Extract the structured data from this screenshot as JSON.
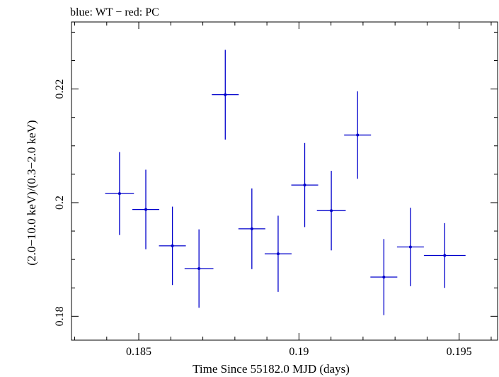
{
  "chart_data": {
    "type": "scatter",
    "title": "blue: WT − red: PC",
    "xlabel": "Time Since 55182.0 MJD (days)",
    "ylabel": "(2.0−10.0 keV)/(0.3−2.0 keV)",
    "xlim": [
      0.1829,
      0.1962
    ],
    "ylim": [
      0.1758,
      0.2318
    ],
    "x_ticks": [
      {
        "value": 0.185,
        "label": "0.185"
      },
      {
        "value": 0.19,
        "label": "0.19"
      },
      {
        "value": 0.195,
        "label": "0.195"
      }
    ],
    "y_ticks": [
      {
        "value": 0.18,
        "label": "0.18"
      },
      {
        "value": 0.2,
        "label": "0.2"
      },
      {
        "value": 0.22,
        "label": "0.22"
      }
    ],
    "grid": false,
    "series": [
      {
        "name": "WT",
        "color": "#0000cc",
        "points": [
          {
            "x": 0.1844,
            "xerr": 0.00045,
            "y": 0.2016,
            "yerr": 0.0073
          },
          {
            "x": 0.18522,
            "xerr": 0.00042,
            "y": 0.1988,
            "yerr": 0.007
          },
          {
            "x": 0.18605,
            "xerr": 0.00042,
            "y": 0.1924,
            "yerr": 0.0069
          },
          {
            "x": 0.18688,
            "xerr": 0.00045,
            "y": 0.1884,
            "yerr": 0.0069
          },
          {
            "x": 0.1877,
            "xerr": 0.00042,
            "y": 0.219,
            "yerr": 0.0079
          },
          {
            "x": 0.18853,
            "xerr": 0.00042,
            "y": 0.1954,
            "yerr": 0.0071
          },
          {
            "x": 0.18935,
            "xerr": 0.00042,
            "y": 0.191,
            "yerr": 0.0067
          },
          {
            "x": 0.19018,
            "xerr": 0.00042,
            "y": 0.2031,
            "yerr": 0.0074
          },
          {
            "x": 0.19101,
            "xerr": 0.00045,
            "y": 0.1986,
            "yerr": 0.007
          },
          {
            "x": 0.19183,
            "xerr": 0.00042,
            "y": 0.2119,
            "yerr": 0.0077
          },
          {
            "x": 0.19265,
            "xerr": 0.00042,
            "y": 0.1869,
            "yerr": 0.0067
          },
          {
            "x": 0.19348,
            "xerr": 0.00042,
            "y": 0.1922,
            "yerr": 0.0069
          },
          {
            "x": 0.19455,
            "xerr": 0.00065,
            "y": 0.1907,
            "yerr": 0.0057
          }
        ]
      }
    ]
  }
}
